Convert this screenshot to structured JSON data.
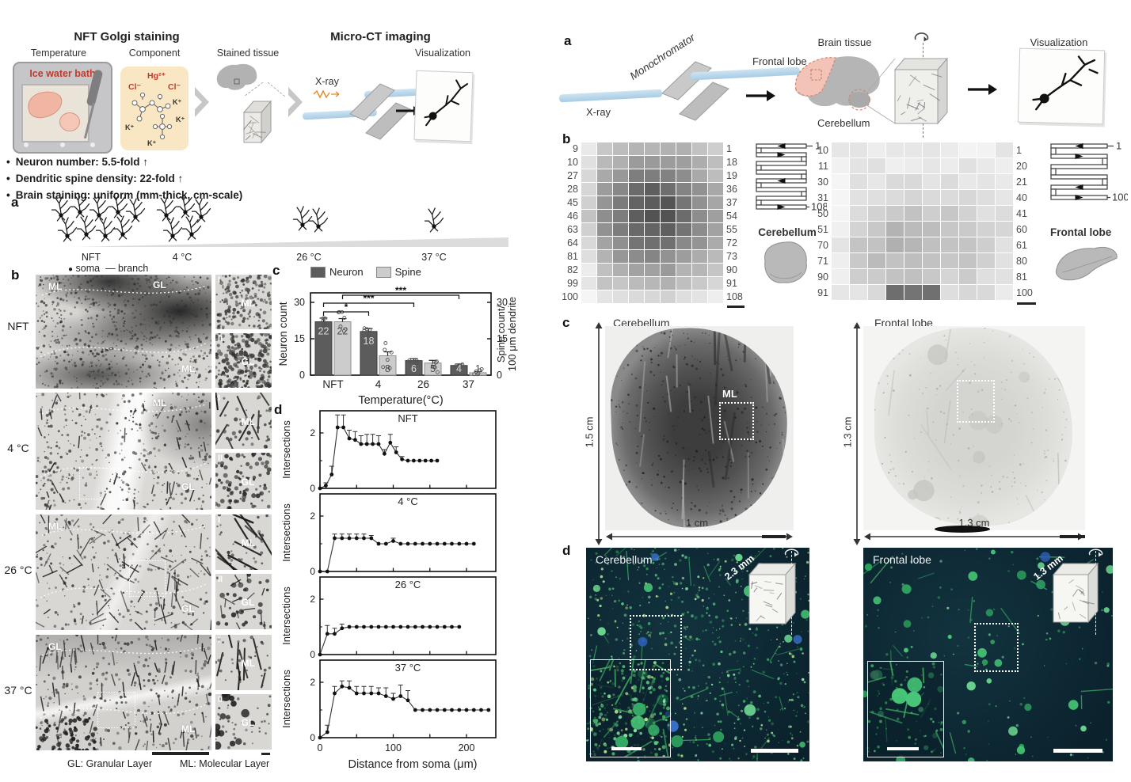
{
  "lf": {
    "title_golgi": "NFT Golgi staining",
    "title_ct": "Micro-CT imaging",
    "step_temperature": "Temperature",
    "step_component": "Component",
    "step_stained": "Stained tissue",
    "step_visualization": "Visualization",
    "ice_bath": "Ice water bath",
    "xray": "X-ray",
    "chem": {
      "hg": "Hg²⁺",
      "cl1": "Cl⁻",
      "cl2": "Cl⁻",
      "k1": "K⁺",
      "k2": "K⁺",
      "k3": "K⁺",
      "k4": "K⁺"
    },
    "bullets": [
      "Neuron number: 5.5-fold ↑",
      "Dendritic spine density: 22-fold ↑",
      "Brain staining: uniform (mm-thick, cm-scale)"
    ],
    "panel_a": {
      "label": "a",
      "temps": [
        "NFT",
        "4 °C",
        "26 °C",
        "37 °C"
      ],
      "counts": [
        9,
        5,
        2,
        1
      ],
      "legend_soma": "soma",
      "legend_branch": "branch",
      "legend_dot": "●",
      "legend_dash": "—"
    },
    "panel_b": {
      "label": "b",
      "rows": [
        {
          "temp": "NFT",
          "labels": [
            "ML",
            "GL",
            "ML"
          ],
          "insets": [
            {
              "n": "I",
              "r": "ML"
            },
            {
              "n": "II",
              "r": "GL"
            }
          ]
        },
        {
          "temp": "4 °C",
          "labels": [
            "",
            "ML",
            "GL"
          ],
          "insets": [
            {
              "n": "I",
              "r": "ML"
            },
            {
              "n": "II",
              "r": "GL"
            }
          ]
        },
        {
          "temp": "26 °C",
          "labels": [
            "ML",
            "",
            "GL"
          ],
          "insets": [
            {
              "n": "I",
              "r": "ML"
            },
            {
              "n": "II",
              "r": "GL"
            }
          ]
        },
        {
          "temp": "37 °C",
          "labels": [
            "GL",
            "",
            "ML"
          ],
          "insets": [
            {
              "n": "I",
              "r": "ML"
            },
            {
              "n": "II",
              "r": "GL"
            }
          ]
        }
      ],
      "caption_gl": "GL: Granular Layer",
      "caption_ml": "ML: Molecular Layer"
    },
    "panel_c_label": "c",
    "panel_d_label": "d"
  },
  "rf": {
    "panel_a": {
      "label": "a",
      "monochromator": "Monochromator",
      "xray": "X-ray",
      "brain_tissue": "Brain tissue",
      "frontal_lobe": "Frontal lobe",
      "cerebellum": "Cerebellum",
      "visualization": "Visualization"
    },
    "panel_b": {
      "label": "b",
      "cerebellum": {
        "name": "Cerebellum",
        "left_labels": [
          "9",
          "10",
          "27",
          "28",
          "45",
          "46",
          "63",
          "64",
          "81",
          "82",
          "99",
          "100"
        ],
        "right_labels": [
          "1",
          "18",
          "19",
          "36",
          "37",
          "54",
          "55",
          "72",
          "73",
          "90",
          "91",
          "108"
        ],
        "cols": 9,
        "serp_start": "1",
        "serp_end": "108"
      },
      "frontal": {
        "name": "Frontal lobe",
        "left_labels": [
          "10",
          "11",
          "30",
          "31",
          "50",
          "51",
          "70",
          "71",
          "90",
          "91"
        ],
        "right_labels": [
          "1",
          "20",
          "21",
          "40",
          "41",
          "60",
          "61",
          "80",
          "81",
          "100"
        ],
        "cols": 10,
        "serp_start": "1",
        "serp_end": "100"
      }
    },
    "panel_c": {
      "label": "c",
      "left": {
        "name": "Cerebellum",
        "height": "1.5 cm",
        "width": "1 cm",
        "region": "ML"
      },
      "right": {
        "name": "Frontal lobe",
        "height": "1.3 cm",
        "width": "1.3 cm"
      }
    },
    "panel_d": {
      "label": "d",
      "left": {
        "name": "Cerebellum",
        "depth": "2.3 mm"
      },
      "right": {
        "name": "Frontal lobe",
        "depth": "1.3 mm"
      }
    }
  },
  "chart_data": [
    {
      "id": "neuron-spine-bar",
      "type": "bar",
      "categories": [
        "NFT",
        "4",
        "26",
        "37"
      ],
      "series": [
        {
          "name": "Neuron",
          "values": [
            22,
            18,
            6,
            4
          ],
          "color": "#5c5c5c"
        },
        {
          "name": "Spine",
          "values": [
            22,
            8,
            5,
            1
          ],
          "color": "#cccccc"
        }
      ],
      "errors": [
        [
          1.5,
          1.2,
          0.8,
          0.6
        ],
        [
          1.3,
          1.6,
          1.1,
          0.5
        ]
      ],
      "bar_labels": [
        [
          "22",
          "18",
          "6",
          "4"
        ],
        [
          "22",
          "8",
          "5",
          "1"
        ]
      ],
      "xlabel": "Temperature(°C)",
      "ylabel_left": "Neuron count",
      "ylabel_right_line1": "Spine count/",
      "ylabel_right_line2": "100 μm dendrite",
      "ylim": [
        0,
        30
      ],
      "yticks": [
        0,
        15,
        30
      ],
      "legend": [
        "Neuron",
        "Spine"
      ],
      "significance": [
        {
          "pair": [
            "NFT",
            "4"
          ],
          "label": "*"
        },
        {
          "pair": [
            "NFT",
            "26"
          ],
          "label": "***"
        },
        {
          "pair": [
            "NFT",
            "37"
          ],
          "label": "***"
        }
      ]
    },
    {
      "id": "sholl",
      "type": "line",
      "xlabel": "Distance from soma (μm)",
      "ylabel": "Intersections",
      "xticks": [
        0,
        100,
        200
      ],
      "yticks": [
        0,
        2
      ],
      "xlim": [
        0,
        240
      ],
      "ylim": [
        0,
        2.8
      ],
      "plots": [
        {
          "title": "NFT",
          "points": [
            [
              0,
              0,
              0
            ],
            [
              8,
              0.1,
              0.1
            ],
            [
              16,
              0.5,
              0.3
            ],
            [
              24,
              2.2,
              0.45
            ],
            [
              32,
              2.2,
              0.45
            ],
            [
              40,
              1.8,
              0.3
            ],
            [
              48,
              1.75,
              0.3
            ],
            [
              56,
              1.6,
              0.3
            ],
            [
              64,
              1.6,
              0.35
            ],
            [
              72,
              1.6,
              0.35
            ],
            [
              80,
              1.6,
              0.3
            ],
            [
              88,
              1.25,
              0.15
            ],
            [
              96,
              1.65,
              0.3
            ],
            [
              104,
              1.3,
              0.2
            ],
            [
              112,
              1.05,
              0.1
            ],
            [
              120,
              1,
              0
            ],
            [
              128,
              1,
              0
            ],
            [
              136,
              1,
              0
            ],
            [
              144,
              1,
              0
            ],
            [
              152,
              1,
              0
            ],
            [
              160,
              1,
              0
            ]
          ]
        },
        {
          "title": "4 °C",
          "points": [
            [
              0,
              0,
              0
            ],
            [
              10,
              0,
              0
            ],
            [
              20,
              1.2,
              0.15
            ],
            [
              30,
              1.2,
              0.15
            ],
            [
              40,
              1.2,
              0.15
            ],
            [
              50,
              1.2,
              0.15
            ],
            [
              60,
              1.2,
              0.15
            ],
            [
              70,
              1.2,
              0.1
            ],
            [
              80,
              1,
              0
            ],
            [
              90,
              1,
              0
            ],
            [
              100,
              1.1,
              0.1
            ],
            [
              110,
              1,
              0
            ],
            [
              120,
              1,
              0
            ],
            [
              130,
              1,
              0
            ],
            [
              140,
              1,
              0
            ],
            [
              150,
              1,
              0
            ],
            [
              160,
              1,
              0
            ],
            [
              170,
              1,
              0
            ],
            [
              180,
              1,
              0
            ],
            [
              190,
              1,
              0
            ],
            [
              200,
              1,
              0
            ],
            [
              210,
              1,
              0
            ]
          ]
        },
        {
          "title": "26 °C",
          "points": [
            [
              0,
              0,
              0
            ],
            [
              10,
              0.75,
              0.3
            ],
            [
              20,
              0.75,
              0.2
            ],
            [
              30,
              0.95,
              0.15
            ],
            [
              40,
              1,
              0
            ],
            [
              50,
              1,
              0
            ],
            [
              60,
              1,
              0
            ],
            [
              70,
              1,
              0
            ],
            [
              80,
              1,
              0
            ],
            [
              90,
              1,
              0
            ],
            [
              100,
              1,
              0
            ],
            [
              110,
              1,
              0
            ],
            [
              120,
              1,
              0
            ],
            [
              130,
              1,
              0
            ],
            [
              140,
              1,
              0
            ],
            [
              150,
              1,
              0
            ],
            [
              160,
              1,
              0
            ],
            [
              170,
              1,
              0
            ],
            [
              180,
              1,
              0
            ],
            [
              190,
              1,
              0
            ]
          ]
        },
        {
          "title": "37 °C",
          "points": [
            [
              0,
              0,
              0
            ],
            [
              10,
              0.2,
              0.25
            ],
            [
              20,
              1.6,
              0.25
            ],
            [
              30,
              1.85,
              0.2
            ],
            [
              40,
              1.8,
              0.25
            ],
            [
              50,
              1.6,
              0.25
            ],
            [
              60,
              1.6,
              0.25
            ],
            [
              70,
              1.6,
              0.25
            ],
            [
              80,
              1.6,
              0.2
            ],
            [
              90,
              1.5,
              0.3
            ],
            [
              100,
              1.4,
              0.2
            ],
            [
              110,
              1.5,
              0.4
            ],
            [
              120,
              1.35,
              0.35
            ],
            [
              130,
              1,
              0
            ],
            [
              140,
              1,
              0
            ],
            [
              150,
              1,
              0
            ],
            [
              160,
              1,
              0
            ],
            [
              170,
              1,
              0
            ],
            [
              180,
              1,
              0
            ],
            [
              190,
              1,
              0
            ],
            [
              200,
              1,
              0
            ],
            [
              210,
              1,
              0
            ],
            [
              220,
              1,
              0
            ],
            [
              230,
              1,
              0
            ]
          ]
        }
      ]
    }
  ]
}
